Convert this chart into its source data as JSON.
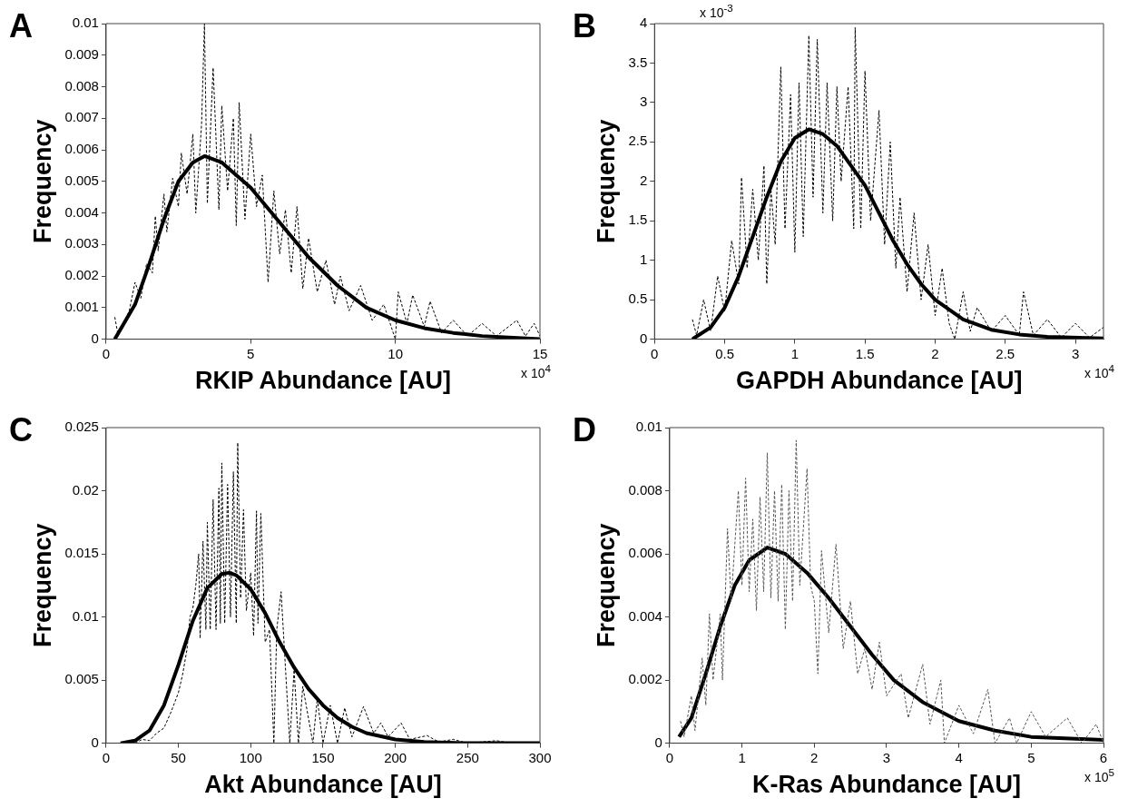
{
  "chart_data": [
    {
      "type": "line",
      "title": "A",
      "xlabel": "RKIP Abundance [AU]",
      "ylabel": "Frequency",
      "xlim": [
        0,
        15
      ],
      "ylim": [
        0,
        0.01
      ],
      "xticks": [
        0,
        5,
        10,
        15
      ],
      "yticks": [
        0,
        0.001,
        0.002,
        0.003,
        0.004,
        0.005,
        0.006,
        0.007,
        0.008,
        0.009,
        0.01
      ],
      "legend": false,
      "grid": false,
      "marker": "none",
      "annotations": [
        "x 10$^{4}$"
      ],
      "series": [
        {
          "color": "#000000",
          "line_style": "dashed",
          "x": [
            0.3,
            0.4,
            0.6,
            0.8,
            1.0,
            1.2,
            1.4,
            1.6,
            1.7,
            1.8,
            2.0,
            2.1,
            2.3,
            2.5,
            2.6,
            2.8,
            3.0,
            3.1,
            3.3,
            3.4,
            3.5,
            3.7,
            3.9,
            4.0,
            4.2,
            4.4,
            4.5,
            4.6,
            4.8,
            5.0,
            5.2,
            5.4,
            5.6,
            5.8,
            6.0,
            6.2,
            6.4,
            6.6,
            6.8,
            7.0,
            7.3,
            7.6,
            7.9,
            8.1,
            8.4,
            8.8,
            9.2,
            9.6,
            10.0,
            10.1,
            10.4,
            10.6,
            11.0,
            11.2,
            11.6,
            12.0,
            12.5,
            13.0,
            13.5,
            14.2,
            14.5,
            14.8,
            15
          ],
          "values": [
            0.0007,
            0.0002,
            0.0005,
            0.0009,
            0.0018,
            0.0013,
            0.0024,
            0.0021,
            0.0039,
            0.0028,
            0.0046,
            0.0034,
            0.0051,
            0.0042,
            0.0059,
            0.0046,
            0.0065,
            0.004,
            0.0068,
            0.01,
            0.0043,
            0.0086,
            0.0041,
            0.0074,
            0.0047,
            0.007,
            0.0036,
            0.0075,
            0.0038,
            0.0065,
            0.0042,
            0.0052,
            0.0018,
            0.0047,
            0.0027,
            0.0041,
            0.0021,
            0.0042,
            0.0016,
            0.0032,
            0.0015,
            0.0025,
            0.0011,
            0.002,
            0.0009,
            0.0017,
            0.0006,
            0.0011,
            0,
            0.0015,
            0.0005,
            0.0014,
            0.0004,
            0.0012,
            0.0002,
            0.0006,
            0.0001,
            0.0005,
            0.0001,
            0.0006,
            0.0001,
            0.0005,
            0.0001
          ]
        },
        {
          "color": "#000000",
          "line_style": "solid",
          "x": [
            0.3,
            1,
            1.5,
            2,
            2.5,
            3,
            3.4,
            4,
            5,
            6,
            7,
            8,
            9,
            10,
            11,
            12,
            13,
            15
          ],
          "values": [
            0,
            0.0011,
            0.0024,
            0.0038,
            0.005,
            0.0056,
            0.0058,
            0.0056,
            0.0048,
            0.0037,
            0.0026,
            0.0017,
            0.001,
            0.0006,
            0.00035,
            0.0002,
            0.0001,
            0
          ]
        }
      ]
    },
    {
      "type": "line",
      "title": "B",
      "xlabel": "GAPDH Abundance [AU]",
      "ylabel": "Frequency",
      "xlim": [
        0,
        3.2
      ],
      "ylim": [
        0,
        4
      ],
      "xticks": [
        0,
        0.5,
        1,
        1.5,
        2,
        2.5,
        3
      ],
      "yticks": [
        0,
        0.5,
        1,
        1.5,
        2,
        2.5,
        3,
        3.5,
        4
      ],
      "legend": false,
      "grid": false,
      "marker": "none",
      "annotations": [
        "x 10$^{4}$",
        "x 10$^{-3}$"
      ],
      "series": [
        {
          "color": "#000000",
          "line_style": "dashed",
          "x": [
            0.27,
            0.3,
            0.35,
            0.4,
            0.45,
            0.5,
            0.55,
            0.6,
            0.62,
            0.66,
            0.7,
            0.74,
            0.78,
            0.8,
            0.83,
            0.86,
            0.9,
            0.93,
            0.97,
            1.0,
            1.03,
            1.06,
            1.1,
            1.13,
            1.16,
            1.2,
            1.23,
            1.27,
            1.3,
            1.33,
            1.38,
            1.42,
            1.43,
            1.47,
            1.5,
            1.54,
            1.6,
            1.64,
            1.68,
            1.72,
            1.75,
            1.8,
            1.85,
            1.9,
            1.95,
            2.0,
            2.05,
            2.1,
            2.14,
            2.2,
            2.25,
            2.3,
            2.4,
            2.5,
            2.6,
            2.63,
            2.7,
            2.8,
            2.9,
            3.0,
            3.1,
            3.2
          ],
          "values": [
            0.25,
            0.05,
            0.5,
            0.1,
            0.8,
            0.35,
            1.25,
            0.7,
            2.05,
            0.9,
            1.9,
            1.0,
            2.2,
            0.7,
            1.9,
            1.2,
            3.45,
            1.4,
            3.1,
            1.1,
            3.25,
            1.3,
            3.85,
            1.8,
            3.8,
            1.6,
            3.25,
            1.5,
            3.2,
            2.0,
            3.2,
            1.4,
            3.95,
            1.4,
            3.4,
            1.5,
            2.9,
            1.2,
            2.5,
            0.9,
            1.8,
            0.6,
            1.6,
            0.5,
            1.2,
            0.3,
            0.9,
            0.2,
            0,
            0.6,
            0.1,
            0.4,
            0.1,
            0.3,
            0.05,
            0.6,
            0.05,
            0.25,
            0.02,
            0.2,
            0.02,
            0.15
          ]
        },
        {
          "color": "#000000",
          "line_style": "solid",
          "x": [
            0.27,
            0.4,
            0.5,
            0.6,
            0.7,
            0.8,
            0.9,
            1.0,
            1.1,
            1.2,
            1.3,
            1.4,
            1.5,
            1.6,
            1.7,
            1.8,
            1.9,
            2.0,
            2.2,
            2.4,
            2.6,
            2.8,
            3.2
          ],
          "values": [
            0,
            0.15,
            0.4,
            0.8,
            1.3,
            1.8,
            2.25,
            2.55,
            2.66,
            2.6,
            2.45,
            2.2,
            1.95,
            1.6,
            1.25,
            0.95,
            0.7,
            0.5,
            0.25,
            0.12,
            0.06,
            0.03,
            0.01
          ]
        }
      ]
    },
    {
      "type": "line",
      "title": "C",
      "xlabel": "Akt Abundance [AU]",
      "ylabel": "Frequency",
      "xlim": [
        0,
        300
      ],
      "ylim": [
        0,
        0.025
      ],
      "xticks": [
        0,
        50,
        100,
        150,
        200,
        250,
        300
      ],
      "yticks": [
        0,
        0.005,
        0.01,
        0.015,
        0.02,
        0.025
      ],
      "legend": false,
      "grid": false,
      "marker": "none",
      "series": [
        {
          "color": "#000000",
          "line_style": "dashed",
          "x": [
            20,
            25,
            30,
            35,
            40,
            45,
            50,
            53,
            56,
            58,
            60,
            62,
            64,
            65,
            67,
            69,
            70,
            72,
            74,
            76,
            78,
            79,
            80,
            82,
            84,
            86,
            88,
            90,
            91,
            93,
            95,
            97,
            100,
            102,
            104,
            105,
            107,
            110,
            113,
            116,
            118,
            121,
            124,
            127,
            130,
            133,
            136,
            143,
            146,
            150,
            155,
            160,
            165,
            170,
            178,
            185,
            190,
            195,
            204,
            210,
            222,
            230,
            240,
            250,
            270,
            280
          ],
          "values": [
            0,
            0.0003,
            0.0002,
            0.0008,
            0.0012,
            0.0025,
            0.004,
            0.0055,
            0.0075,
            0.01,
            0.0107,
            0.0125,
            0.015,
            0.0083,
            0.016,
            0.009,
            0.0175,
            0.009,
            0.0193,
            0.009,
            0.0202,
            0.0095,
            0.0222,
            0.0095,
            0.0205,
            0.01,
            0.0215,
            0.0095,
            0.0238,
            0.0115,
            0.0185,
            0.0105,
            0.0135,
            0.0085,
            0.0184,
            0.0095,
            0.0182,
            0.008,
            0.009,
            0,
            0.009,
            0.012,
            0.006,
            0,
            0.0058,
            0,
            0.0045,
            0,
            0.0035,
            0,
            0.003,
            0,
            0.0028,
            0.0005,
            0.0029,
            0.0008,
            0.0016,
            0.0005,
            0.0016,
            0.0003,
            0.0006,
            0.0001,
            0.0003,
            0,
            0.0002,
            0
          ]
        },
        {
          "color": "#000000",
          "line_style": "solid",
          "x": [
            10,
            20,
            30,
            40,
            50,
            60,
            70,
            80,
            85,
            90,
            100,
            110,
            120,
            130,
            140,
            150,
            160,
            170,
            180,
            200,
            220,
            250,
            300
          ],
          "values": [
            0,
            0.0002,
            0.001,
            0.003,
            0.0062,
            0.0097,
            0.0123,
            0.0134,
            0.0135,
            0.0133,
            0.0122,
            0.0103,
            0.008,
            0.006,
            0.0043,
            0.003,
            0.002,
            0.0013,
            0.0008,
            0.0003,
            0.0001,
            0,
            0
          ]
        }
      ]
    },
    {
      "type": "line",
      "title": "D",
      "xlabel": "K-Ras Abundance [AU]",
      "ylabel": "Frequency",
      "xlim": [
        0,
        6
      ],
      "ylim": [
        0,
        0.01
      ],
      "xticks": [
        0,
        1,
        2,
        3,
        4,
        5,
        6
      ],
      "yticks": [
        0,
        0.002,
        0.004,
        0.006,
        0.008,
        0.01
      ],
      "legend": false,
      "grid": false,
      "marker": "none",
      "annotations": [
        "x 10$^{5}$"
      ],
      "series": [
        {
          "color": "#555555",
          "line_style": "dashed",
          "x": [
            0.15,
            0.2,
            0.3,
            0.35,
            0.45,
            0.5,
            0.55,
            0.6,
            0.7,
            0.73,
            0.8,
            0.85,
            0.95,
            1.0,
            1.05,
            1.1,
            1.15,
            1.2,
            1.25,
            1.3,
            1.35,
            1.4,
            1.45,
            1.5,
            1.55,
            1.6,
            1.65,
            1.7,
            1.75,
            1.8,
            1.9,
            1.95,
            2.0,
            2.05,
            2.1,
            2.2,
            2.3,
            2.4,
            2.5,
            2.6,
            2.7,
            2.8,
            2.9,
            3.0,
            3.2,
            3.3,
            3.5,
            3.6,
            3.75,
            3.8,
            4.0,
            4.2,
            4.4,
            4.5,
            4.7,
            4.8,
            5.0,
            5.2,
            5.5,
            5.7,
            5.9,
            6.0
          ],
          "values": [
            0.0007,
            0.0002,
            0.0015,
            0.0004,
            0.0027,
            0.0012,
            0.0041,
            0.002,
            0.0041,
            0.002,
            0.0068,
            0.0045,
            0.008,
            0.005,
            0.0084,
            0.0048,
            0.0071,
            0.0042,
            0.0078,
            0.0048,
            0.0092,
            0.0046,
            0.008,
            0.0045,
            0.0082,
            0.0036,
            0.008,
            0.0045,
            0.0096,
            0.005,
            0.0087,
            0.005,
            0.0045,
            0.0022,
            0.0061,
            0.0035,
            0.0063,
            0.003,
            0.0045,
            0.0022,
            0.003,
            0.0017,
            0.0032,
            0.0015,
            0.0022,
            0.0008,
            0.0025,
            0.0006,
            0.002,
            0,
            0.0012,
            0.0003,
            0.0017,
            0,
            0.0008,
            0,
            0.001,
            0.0002,
            0.0008,
            0,
            0.0006,
            0
          ]
        },
        {
          "color": "#000000",
          "line_style": "solid",
          "x": [
            0.13,
            0.3,
            0.5,
            0.7,
            0.9,
            1.1,
            1.35,
            1.6,
            1.9,
            2.2,
            2.5,
            2.8,
            3.1,
            3.5,
            4.0,
            4.5,
            5.0,
            6.0
          ],
          "values": [
            0.0002,
            0.0008,
            0.0022,
            0.0037,
            0.005,
            0.0058,
            0.0062,
            0.006,
            0.0054,
            0.0046,
            0.0037,
            0.0028,
            0.002,
            0.0013,
            0.0007,
            0.0004,
            0.0002,
            0.0001
          ]
        }
      ]
    }
  ]
}
